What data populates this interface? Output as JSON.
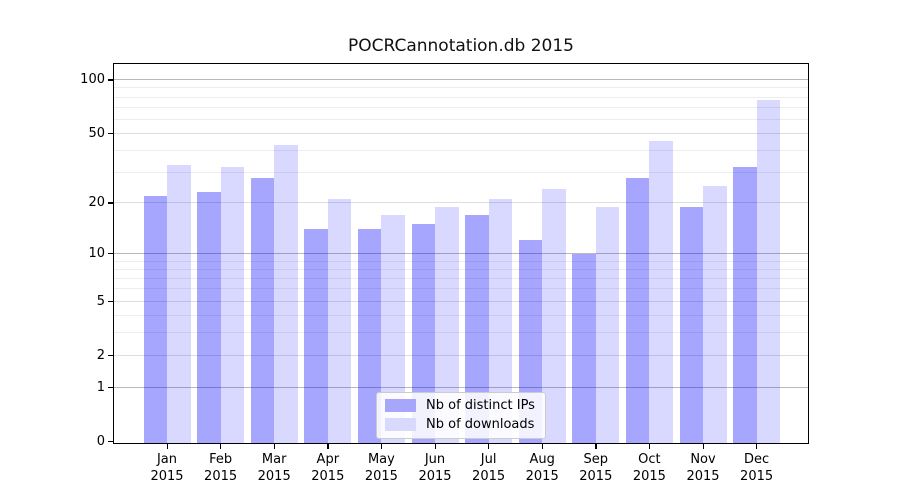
{
  "chart_data": {
    "type": "bar",
    "title": "POCRCannotation.db 2015",
    "categories": [
      "Jan",
      "Feb",
      "Mar",
      "Apr",
      "May",
      "Jun",
      "Jul",
      "Aug",
      "Sep",
      "Oct",
      "Nov",
      "Dec"
    ],
    "x_year_label": "2015",
    "series": [
      {
        "name": "Nb of distinct IPs",
        "color": "rgba(0,0,255,0.35)",
        "legend_color": "#a6a6fa",
        "values": [
          22,
          23,
          28,
          14,
          14,
          15,
          17,
          12,
          10,
          28,
          19,
          32
        ]
      },
      {
        "name": "Nb of downloads",
        "color": "rgba(0,0,255,0.15)",
        "legend_color": "#d9d9fd",
        "values": [
          33,
          32,
          43,
          21,
          17,
          19,
          21,
          24,
          19,
          45,
          25,
          77
        ]
      }
    ],
    "y_axis": {
      "scale": "log10(value+1)",
      "tick_values": [
        0,
        1,
        2,
        5,
        10,
        20,
        50,
        100
      ],
      "ylim": [
        0,
        123
      ],
      "gridlines": {
        "major": [
          1,
          10,
          100
        ],
        "mid": [
          2,
          5,
          20,
          50
        ],
        "minor": [
          3,
          4,
          6,
          7,
          8,
          9,
          30,
          40,
          60,
          70,
          80,
          90
        ]
      }
    },
    "grid": true,
    "legend_position": "lower center",
    "colors": {
      "major_grid": "#b9b9bd",
      "mid_grid": "#dedee1",
      "minor_grid": "#ededef",
      "spine": "#000000",
      "ips_bar": "#a6a6fa",
      "downloads_bar": "#d9d9fd"
    }
  }
}
